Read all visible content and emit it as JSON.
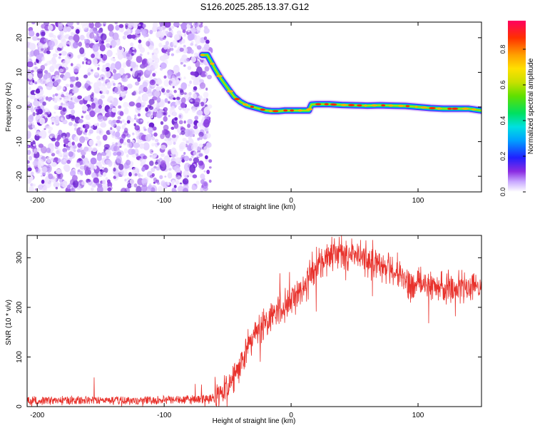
{
  "figure_title": "S126.2025.285.13.37.G12",
  "chart_data": [
    {
      "type": "heatmap",
      "xlabel": "Height of straight line (km)",
      "ylabel": "Frequency (Hz)",
      "xlim": [
        -208,
        150
      ],
      "ylim": [
        -24.5,
        24.5
      ],
      "xticks": [
        -200,
        -100,
        0,
        100
      ],
      "yticks": [
        -20,
        -10,
        0,
        10,
        20
      ],
      "noise_region_x": [
        -208,
        -67
      ],
      "signal_track": {
        "x": [
          -70,
          -66,
          -60,
          -55,
          -50,
          -45,
          -40,
          -35,
          -30,
          -25,
          -20,
          -15,
          -10,
          -5,
          0,
          5,
          10,
          14,
          16,
          20,
          30,
          40,
          50,
          60,
          70,
          80,
          90,
          100,
          110,
          120,
          130,
          140,
          150
        ],
        "y": [
          15,
          15,
          11,
          8,
          5.5,
          3,
          1.5,
          0.5,
          0,
          -0.5,
          -1,
          -1.2,
          -1.2,
          -1,
          -1,
          -1,
          -1,
          -1,
          0.7,
          0.8,
          0.8,
          0.6,
          0.5,
          0.4,
          0.5,
          0.4,
          0.3,
          0,
          -0.3,
          -0.5,
          -0.5,
          -0.5,
          -1
        ]
      },
      "colorbar": {
        "label": "Normalized spectral amplitude",
        "range": [
          0,
          0.96
        ],
        "ticks": [
          0,
          0.2,
          0.4,
          0.6,
          0.8
        ]
      }
    },
    {
      "type": "line",
      "xlabel": "Height of straight line (km)",
      "ylabel": "SNR (10 * v/v)",
      "xlim": [
        -208,
        150
      ],
      "ylim": [
        0,
        345
      ],
      "xticks": [
        -200,
        -100,
        0,
        100
      ],
      "yticks": [
        0,
        100,
        200,
        300
      ],
      "series": [
        {
          "color": "#e8312b",
          "envelope": {
            "x": [
              -208,
              -100,
              -65,
              -55,
              -50,
              -40,
              -35,
              -30,
              -20,
              -10,
              0,
              10,
              20,
              30,
              40,
              50,
              60,
              70,
              80,
              90,
              95,
              100,
              110,
              120,
              130,
              140,
              150
            ],
            "y": [
              12,
              13,
              15,
              20,
              40,
              80,
              120,
              140,
              170,
              195,
              215,
              240,
              280,
              305,
              310,
              305,
              295,
              285,
              275,
              265,
              235,
              250,
              245,
              240,
              240,
              240,
              240
            ]
          },
          "noise_amplitude": 15
        }
      ]
    }
  ]
}
